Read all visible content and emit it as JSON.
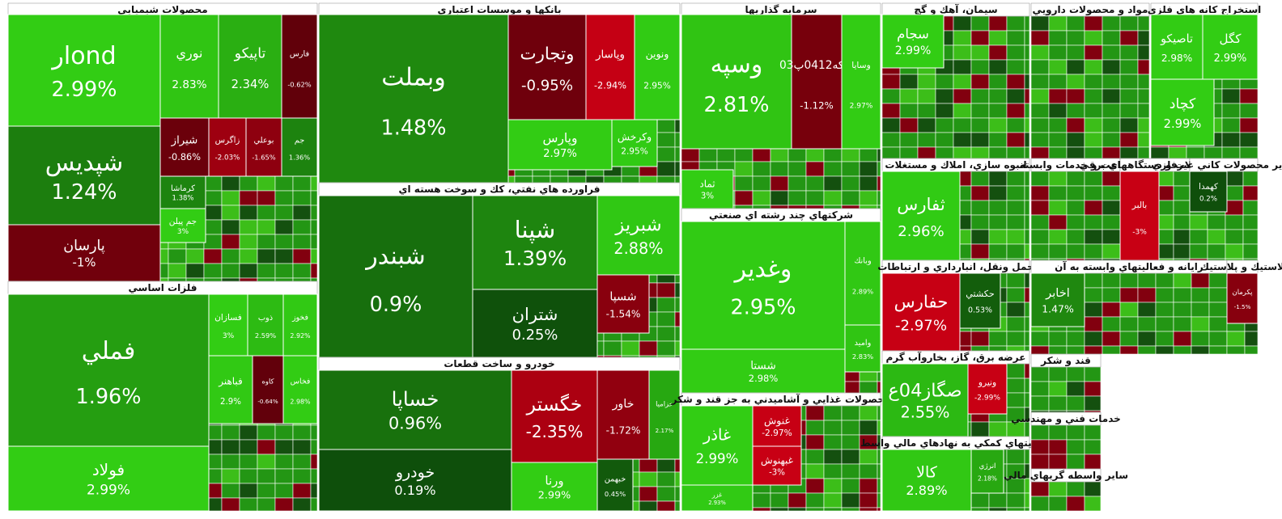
{
  "sectors": [
    {
      "title": "محصولات شيميايي",
      "tiles": [
        {
          "name": "ارond",
          "change": 2.99,
          "change_label": "2.99%"
        },
        {
          "name": "شپديس",
          "change": 1.24,
          "change_label": "1.24%"
        },
        {
          "name": "پارسان",
          "change": -1,
          "change_label": "-1%"
        },
        {
          "name": "نوري",
          "change": 2.83,
          "change_label": "2.83%"
        },
        {
          "name": "تاپيكو",
          "change": 2.34,
          "change_label": "2.34%"
        },
        {
          "name": "فارس",
          "change": -0.62,
          "change_label": "-0.62%"
        },
        {
          "name": "شيراز",
          "change": -0.86,
          "change_label": "-0.86%"
        },
        {
          "name": "زاگرس",
          "change": -2.03,
          "change_label": "-2.03%"
        },
        {
          "name": "بوعلي",
          "change": -1.65,
          "change_label": "-1.65%"
        },
        {
          "name": "جم",
          "change": 1.36,
          "change_label": "1.36%"
        },
        {
          "name": "كرماشا",
          "change": 1.38,
          "change_label": "1.38%"
        },
        {
          "name": "جم پيلن",
          "change": 3,
          "change_label": "3%"
        }
      ]
    },
    {
      "title": "فلزات اساسي",
      "tiles": [
        {
          "name": "فملي",
          "change": 1.96,
          "change_label": "1.96%"
        },
        {
          "name": "فولاد",
          "change": 2.99,
          "change_label": "2.99%"
        },
        {
          "name": "فسازان",
          "change": 3,
          "change_label": "3%"
        },
        {
          "name": "ذوب",
          "change": 2.59,
          "change_label": "2.59%"
        },
        {
          "name": "فخوز",
          "change": 2.92,
          "change_label": "2.92%"
        },
        {
          "name": "فباهنر",
          "change": 2.9,
          "change_label": "2.9%"
        },
        {
          "name": "كاوه",
          "change": -0.64,
          "change_label": "-0.64%"
        },
        {
          "name": "فخاس",
          "change": 2.98,
          "change_label": "2.98%"
        }
      ]
    },
    {
      "title": "بانكها و موسسات اعتباري",
      "tiles": [
        {
          "name": "وبملت",
          "change": 1.48,
          "change_label": "1.48%"
        },
        {
          "name": "وتجارت",
          "change": -0.95,
          "change_label": "-0.95%"
        },
        {
          "name": "وپاسار",
          "change": -2.94,
          "change_label": "-2.94%"
        },
        {
          "name": "ونوين",
          "change": 2.95,
          "change_label": "2.95%"
        },
        {
          "name": "وپارس",
          "change": 2.97,
          "change_label": "2.97%"
        },
        {
          "name": "وكرخش",
          "change": 2.95,
          "change_label": "2.95%"
        }
      ]
    },
    {
      "title": "فراورده هاي نفتي، كك و سوخت هسته اي",
      "tiles": [
        {
          "name": "شبندر",
          "change": 0.9,
          "change_label": "0.9%"
        },
        {
          "name": "شپنا",
          "change": 1.39,
          "change_label": "1.39%"
        },
        {
          "name": "شتران",
          "change": 0.25,
          "change_label": "0.25%"
        },
        {
          "name": "شبريز",
          "change": 2.88,
          "change_label": "2.88%"
        },
        {
          "name": "شسپا",
          "change": -1.54,
          "change_label": "-1.54%"
        }
      ]
    },
    {
      "title": "خودرو و ساخت قطعات",
      "tiles": [
        {
          "name": "خساپا",
          "change": 0.96,
          "change_label": "0.96%"
        },
        {
          "name": "خودرو",
          "change": 0.19,
          "change_label": "0.19%"
        },
        {
          "name": "خگستر",
          "change": -2.35,
          "change_label": "-2.35%"
        },
        {
          "name": "خاور",
          "change": -1.72,
          "change_label": "-1.72%"
        },
        {
          "name": "ورنا",
          "change": 2.99,
          "change_label": "2.99%"
        },
        {
          "name": "خبهمن",
          "change": 0.45,
          "change_label": "0.45%"
        },
        {
          "name": "خزاميا",
          "change": 2.17,
          "change_label": "2.17%"
        }
      ]
    },
    {
      "title": "سرمايه گذاريها",
      "tiles": [
        {
          "name": "وسپه",
          "change": 2.81,
          "change_label": "2.81%"
        },
        {
          "name": "سكه0412پ03",
          "change": -1.12,
          "change_label": "-1.12%"
        },
        {
          "name": "وسايا",
          "change": 2.97,
          "change_label": "2.97%"
        },
        {
          "name": "ثماد",
          "change": 3,
          "change_label": "3%"
        }
      ]
    },
    {
      "title": "شركتهاي چند رشته اي صنعتي",
      "tiles": [
        {
          "name": "وغدير",
          "change": 2.95,
          "change_label": "2.95%"
        },
        {
          "name": "شستا",
          "change": 2.98,
          "change_label": "2.98%"
        },
        {
          "name": "وبانك",
          "change": 2.89,
          "change_label": "2.89%"
        },
        {
          "name": "واميد",
          "change": 2.83,
          "change_label": "2.83%"
        }
      ]
    },
    {
      "title": "محصولات غذايي و آشاميدني به جز قند و شكر",
      "tiles": [
        {
          "name": "غاذر",
          "change": 2.99,
          "change_label": "2.99%"
        },
        {
          "name": "غزر",
          "change": 2.93,
          "change_label": "2.93%"
        },
        {
          "name": "غنوش",
          "change": -2.97,
          "change_label": "-2.97%"
        },
        {
          "name": "غبهنوش",
          "change": -3,
          "change_label": "-3%"
        }
      ]
    },
    {
      "title": "سيمان، آهك و گچ",
      "tiles": [
        {
          "name": "سجام",
          "change": 2.99,
          "change_label": "2.99%"
        }
      ]
    },
    {
      "title": "انبوه سازي، املاك و مستغلات",
      "tiles": [
        {
          "name": "ثفارس",
          "change": 2.96,
          "change_label": "2.96%"
        }
      ]
    },
    {
      "title": "حمل ونقل، انبارداري و ارتباطات",
      "tiles": [
        {
          "name": "حفارس",
          "change": -2.97,
          "change_label": "-2.97%"
        },
        {
          "name": "حكشتي",
          "change": 0.53,
          "change_label": "0.53%"
        }
      ]
    },
    {
      "title": "عرضه برق، گاز، بخاروآب گرم",
      "tiles": [
        {
          "name": "صگاز04ع",
          "change": 2.55,
          "change_label": "2.55%"
        },
        {
          "name": "ونيرو",
          "change": -2.99,
          "change_label": "-2.99%"
        }
      ]
    },
    {
      "title": "فعاليتهاي كمكي به نهادهاي مالي واسط",
      "tiles": [
        {
          "name": "كالا",
          "change": 2.89,
          "change_label": "2.89%"
        },
        {
          "name": "انرژي",
          "change": 2.18,
          "change_label": "2.18%"
        }
      ]
    },
    {
      "title": "مواد و محصولات دارويي",
      "tiles": []
    },
    {
      "title": "استخراج كانه هاي فلزي",
      "tiles": [
        {
          "name": "تاصيكو",
          "change": 2.98,
          "change_label": "2.98%"
        },
        {
          "name": "كگل",
          "change": 2.99,
          "change_label": "2.99%"
        },
        {
          "name": "كچاد",
          "change": 2.99,
          "change_label": "2.99%"
        }
      ]
    },
    {
      "title": "زراعت و خدمات وابسته",
      "tiles": []
    },
    {
      "title": "ماشين آلات و دستگاههاي برقي",
      "tiles": [
        {
          "name": "بالبر",
          "change": -3,
          "change_label": "-3%"
        }
      ]
    },
    {
      "title": "ساير محصولات كاني غيرفلزي",
      "tiles": [
        {
          "name": "كهمدا",
          "change": 0.2,
          "change_label": "0.2%"
        }
      ]
    },
    {
      "title": "رايانه و فعاليتهاي وابسته به آن",
      "tiles": [
        {
          "name": "اخابر",
          "change": 1.47,
          "change_label": "1.47%"
        }
      ]
    },
    {
      "title": "لاستيك و پلاستيك",
      "tiles": [
        {
          "name": "پكرمان",
          "change": -1.5,
          "change_label": "-1.5%"
        }
      ]
    },
    {
      "title": "قند و شكر",
      "tiles": []
    },
    {
      "title": "خدمات فني و مهندسي",
      "tiles": []
    },
    {
      "title": "ساير واسطه گريهاي مالي",
      "tiles": []
    }
  ]
}
